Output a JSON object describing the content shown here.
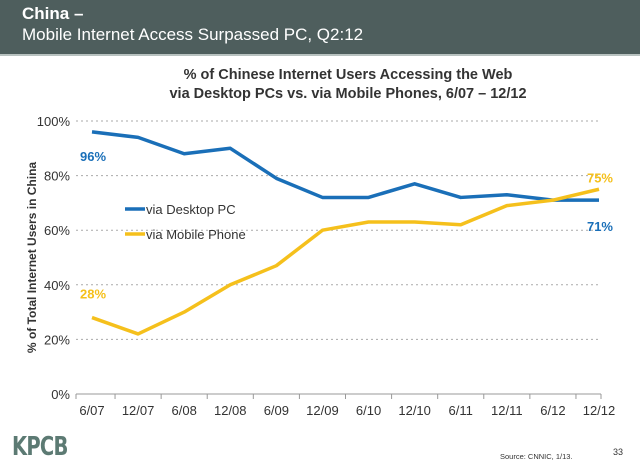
{
  "header": {
    "title": "China –",
    "subtitle": "Mobile Internet Access Surpassed PC, Q2:12"
  },
  "chart_data": {
    "type": "line",
    "title_line1": "% of Chinese Internet Users Accessing the Web",
    "title_line2": "via Desktop PCs vs. via Mobile Phones, 6/07 – 12/12",
    "ylabel": "% of Total Internet Users in China",
    "xlabel": "",
    "categories": [
      "6/07",
      "12/07",
      "6/08",
      "12/08",
      "6/09",
      "12/09",
      "6/10",
      "12/10",
      "6/11",
      "12/11",
      "6/12",
      "12/12"
    ],
    "ylim": [
      0,
      100
    ],
    "yticks": [
      "0%",
      "20%",
      "40%",
      "60%",
      "80%",
      "100%"
    ],
    "ytick_values": [
      0,
      20,
      40,
      60,
      80,
      100
    ],
    "grid": true,
    "legend_position": "left-middle",
    "series": [
      {
        "name": "via Desktop PC",
        "color": "#1a6fb8",
        "values": [
          96,
          94,
          88,
          90,
          79,
          72,
          72,
          77,
          72,
          73,
          71,
          71
        ],
        "start_label": "96%",
        "end_label": "71%"
      },
      {
        "name": "via Mobile Phone",
        "color": "#f5c01c",
        "values": [
          28,
          22,
          30,
          40,
          47,
          60,
          63,
          63,
          62,
          69,
          71,
          75
        ],
        "start_label": "28%",
        "end_label": "75%"
      }
    ]
  },
  "footer": {
    "logo": "KPCB",
    "source": "Source: CNNIC, 1/13.",
    "page": "33"
  }
}
